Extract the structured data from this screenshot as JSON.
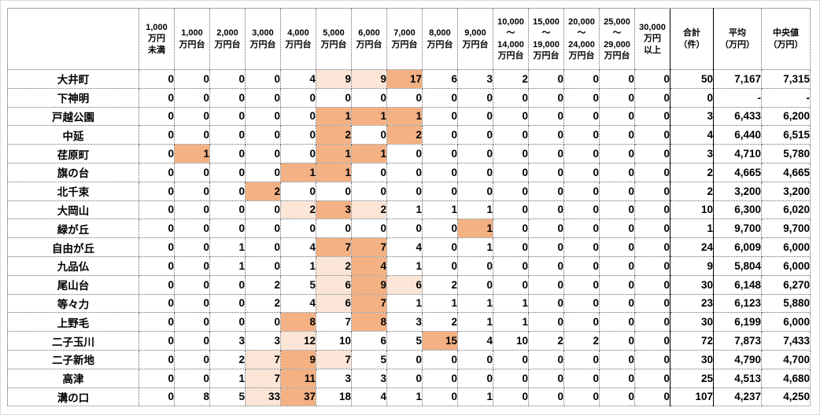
{
  "table": {
    "corner_label": "",
    "bucket_columns": [
      "1,000\n万円\n未満",
      "1,000\n万円台",
      "2,000\n万円台",
      "3,000\n万円台",
      "4,000\n万円台",
      "5,000\n万円台",
      "6,000\n万円台",
      "7,000\n万円台",
      "8,000\n万円台",
      "9,000\n万円台",
      "10,000\n～\n14,000\n万円台",
      "15,000\n～\n19,000\n万円台",
      "20,000\n～\n24,000\n万円台",
      "25,000\n～\n29,000\n万円台",
      "30,000\n万円\n以上"
    ],
    "summary_columns": [
      "合計\n（件）",
      "平均\n（万円）",
      "中央値\n（万円）"
    ],
    "highlight_colors": {
      "light": "#FBE5D6",
      "dark": "#F4B183"
    },
    "rows": [
      {
        "station": "大井町",
        "counts": [
          0,
          0,
          0,
          0,
          4,
          9,
          9,
          17,
          6,
          3,
          2,
          0,
          0,
          0,
          0
        ],
        "highlight": [
          0,
          0,
          0,
          0,
          0,
          1,
          1,
          2,
          0,
          0,
          0,
          0,
          0,
          0,
          0
        ],
        "total": "50",
        "average": "7,167",
        "median": "7,315"
      },
      {
        "station": "下神明",
        "counts": [
          0,
          0,
          0,
          0,
          0,
          0,
          0,
          0,
          0,
          0,
          0,
          0,
          0,
          0,
          0
        ],
        "highlight": [
          0,
          0,
          0,
          0,
          0,
          0,
          0,
          0,
          0,
          0,
          0,
          0,
          0,
          0,
          0
        ],
        "total": "0",
        "average": "-",
        "median": "-"
      },
      {
        "station": "戸越公園",
        "counts": [
          0,
          0,
          0,
          0,
          0,
          1,
          1,
          1,
          0,
          0,
          0,
          0,
          0,
          0,
          0
        ],
        "highlight": [
          0,
          0,
          0,
          0,
          0,
          2,
          2,
          2,
          0,
          0,
          0,
          0,
          0,
          0,
          0
        ],
        "total": "3",
        "average": "6,433",
        "median": "6,200"
      },
      {
        "station": "中延",
        "counts": [
          0,
          0,
          0,
          0,
          0,
          2,
          0,
          2,
          0,
          0,
          0,
          0,
          0,
          0,
          0
        ],
        "highlight": [
          0,
          0,
          0,
          0,
          0,
          2,
          0,
          2,
          0,
          0,
          0,
          0,
          0,
          0,
          0
        ],
        "total": "4",
        "average": "6,440",
        "median": "6,515"
      },
      {
        "station": "荏原町",
        "counts": [
          0,
          1,
          0,
          0,
          0,
          1,
          1,
          0,
          0,
          0,
          0,
          0,
          0,
          0,
          0
        ],
        "highlight": [
          0,
          2,
          0,
          0,
          0,
          2,
          2,
          0,
          0,
          0,
          0,
          0,
          0,
          0,
          0
        ],
        "total": "3",
        "average": "4,710",
        "median": "5,780"
      },
      {
        "station": "旗の台",
        "counts": [
          0,
          0,
          0,
          0,
          1,
          1,
          0,
          0,
          0,
          0,
          0,
          0,
          0,
          0,
          0
        ],
        "highlight": [
          0,
          0,
          0,
          0,
          2,
          2,
          0,
          0,
          0,
          0,
          0,
          0,
          0,
          0,
          0
        ],
        "total": "2",
        "average": "4,665",
        "median": "4,665"
      },
      {
        "station": "北千束",
        "counts": [
          0,
          0,
          0,
          2,
          0,
          0,
          0,
          0,
          0,
          0,
          0,
          0,
          0,
          0,
          0
        ],
        "highlight": [
          0,
          0,
          0,
          2,
          0,
          0,
          0,
          0,
          0,
          0,
          0,
          0,
          0,
          0,
          0
        ],
        "total": "2",
        "average": "3,200",
        "median": "3,200"
      },
      {
        "station": "大岡山",
        "counts": [
          0,
          0,
          0,
          0,
          2,
          3,
          2,
          1,
          1,
          1,
          0,
          0,
          0,
          0,
          0
        ],
        "highlight": [
          0,
          0,
          0,
          0,
          1,
          2,
          1,
          0,
          0,
          0,
          0,
          0,
          0,
          0,
          0
        ],
        "total": "10",
        "average": "6,300",
        "median": "6,020"
      },
      {
        "station": "緑が丘",
        "counts": [
          0,
          0,
          0,
          0,
          0,
          0,
          0,
          0,
          0,
          1,
          0,
          0,
          0,
          0,
          0
        ],
        "highlight": [
          0,
          0,
          0,
          0,
          0,
          0,
          0,
          0,
          0,
          2,
          0,
          0,
          0,
          0,
          0
        ],
        "total": "1",
        "average": "9,700",
        "median": "9,700"
      },
      {
        "station": "自由が丘",
        "counts": [
          0,
          0,
          1,
          0,
          4,
          7,
          7,
          4,
          0,
          1,
          0,
          0,
          0,
          0,
          0
        ],
        "highlight": [
          0,
          0,
          0,
          0,
          0,
          2,
          2,
          0,
          0,
          0,
          0,
          0,
          0,
          0,
          0
        ],
        "total": "24",
        "average": "6,009",
        "median": "6,000"
      },
      {
        "station": "九品仏",
        "counts": [
          0,
          0,
          1,
          0,
          1,
          2,
          4,
          1,
          0,
          0,
          0,
          0,
          0,
          0,
          0
        ],
        "highlight": [
          0,
          0,
          0,
          0,
          0,
          1,
          2,
          0,
          0,
          0,
          0,
          0,
          0,
          0,
          0
        ],
        "total": "9",
        "average": "5,804",
        "median": "6,000"
      },
      {
        "station": "尾山台",
        "counts": [
          0,
          0,
          0,
          2,
          5,
          6,
          9,
          6,
          2,
          0,
          0,
          0,
          0,
          0,
          0
        ],
        "highlight": [
          0,
          0,
          0,
          0,
          0,
          1,
          2,
          1,
          0,
          0,
          0,
          0,
          0,
          0,
          0
        ],
        "total": "30",
        "average": "6,148",
        "median": "6,270"
      },
      {
        "station": "等々力",
        "counts": [
          0,
          0,
          0,
          2,
          4,
          6,
          7,
          1,
          1,
          1,
          1,
          0,
          0,
          0,
          0
        ],
        "highlight": [
          0,
          0,
          0,
          0,
          0,
          1,
          2,
          0,
          0,
          0,
          0,
          0,
          0,
          0,
          0
        ],
        "total": "23",
        "average": "6,123",
        "median": "5,880"
      },
      {
        "station": "上野毛",
        "counts": [
          0,
          0,
          0,
          0,
          8,
          7,
          8,
          3,
          2,
          1,
          1,
          0,
          0,
          0,
          0
        ],
        "highlight": [
          0,
          0,
          0,
          0,
          2,
          0,
          2,
          0,
          0,
          0,
          0,
          0,
          0,
          0,
          0
        ],
        "total": "30",
        "average": "6,199",
        "median": "6,000"
      },
      {
        "station": "二子玉川",
        "counts": [
          0,
          0,
          3,
          3,
          12,
          10,
          6,
          5,
          15,
          4,
          10,
          2,
          2,
          0,
          0
        ],
        "highlight": [
          0,
          0,
          0,
          0,
          1,
          0,
          0,
          0,
          2,
          0,
          0,
          0,
          0,
          0,
          0
        ],
        "total": "72",
        "average": "7,873",
        "median": "7,433"
      },
      {
        "station": "二子新地",
        "counts": [
          0,
          0,
          2,
          7,
          9,
          7,
          5,
          0,
          0,
          0,
          0,
          0,
          0,
          0,
          0
        ],
        "highlight": [
          0,
          0,
          0,
          1,
          2,
          1,
          0,
          0,
          0,
          0,
          0,
          0,
          0,
          0,
          0
        ],
        "total": "30",
        "average": "4,790",
        "median": "4,700"
      },
      {
        "station": "高津",
        "counts": [
          0,
          0,
          1,
          7,
          11,
          3,
          3,
          0,
          0,
          0,
          0,
          0,
          0,
          0,
          0
        ],
        "highlight": [
          0,
          0,
          0,
          1,
          2,
          0,
          0,
          0,
          0,
          0,
          0,
          0,
          0,
          0,
          0
        ],
        "total": "25",
        "average": "4,513",
        "median": "4,680"
      },
      {
        "station": "溝の口",
        "counts": [
          0,
          8,
          5,
          33,
          37,
          18,
          4,
          1,
          0,
          1,
          0,
          0,
          0,
          0,
          0
        ],
        "highlight": [
          0,
          0,
          0,
          1,
          2,
          0,
          0,
          0,
          0,
          0,
          0,
          0,
          0,
          0,
          0
        ],
        "total": "107",
        "average": "4,237",
        "median": "4,250"
      }
    ]
  }
}
